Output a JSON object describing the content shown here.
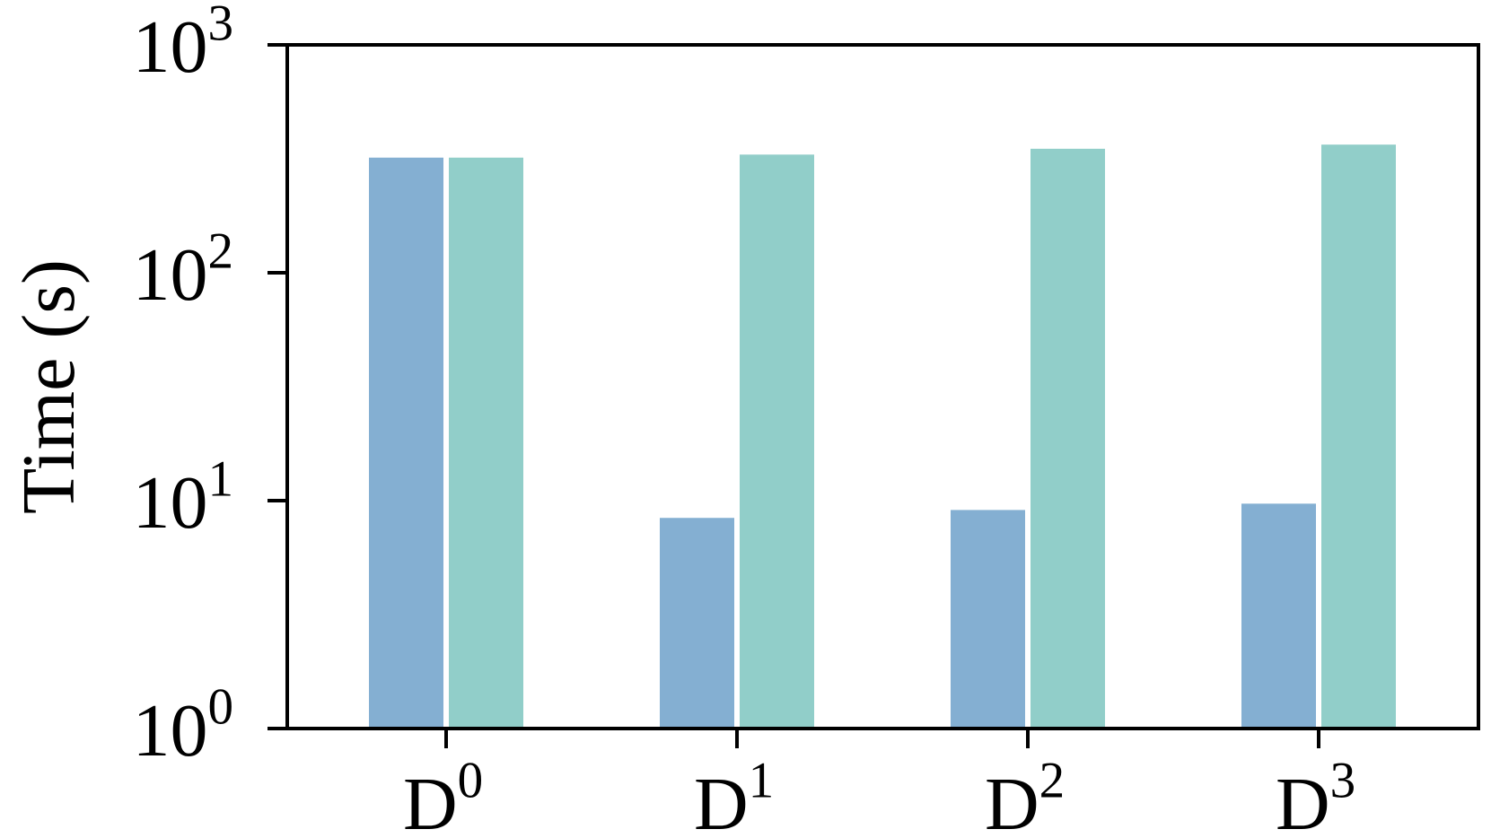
{
  "chart_data": {
    "type": "bar",
    "title": "",
    "xlabel": "",
    "ylabel": "Time (s)",
    "yscale": "log",
    "ylim": [
      1,
      1000
    ],
    "grid": false,
    "legend": "none",
    "categories": [
      {
        "base": "D",
        "sup": "0"
      },
      {
        "base": "D",
        "sup": "1"
      },
      {
        "base": "D",
        "sup": "2"
      },
      {
        "base": "D",
        "sup": "3"
      }
    ],
    "yticks": [
      {
        "value": 1,
        "base": "10",
        "sup": "0"
      },
      {
        "value": 10,
        "base": "10",
        "sup": "1"
      },
      {
        "value": 100,
        "base": "10",
        "sup": "2"
      },
      {
        "value": 1000,
        "base": "10",
        "sup": "3"
      }
    ],
    "series": [
      {
        "color": "#84afd2",
        "values": [
          320,
          8.4,
          9.1,
          9.7
        ]
      },
      {
        "color": "#91cec9",
        "values": [
          320,
          330,
          350,
          365
        ]
      }
    ]
  }
}
